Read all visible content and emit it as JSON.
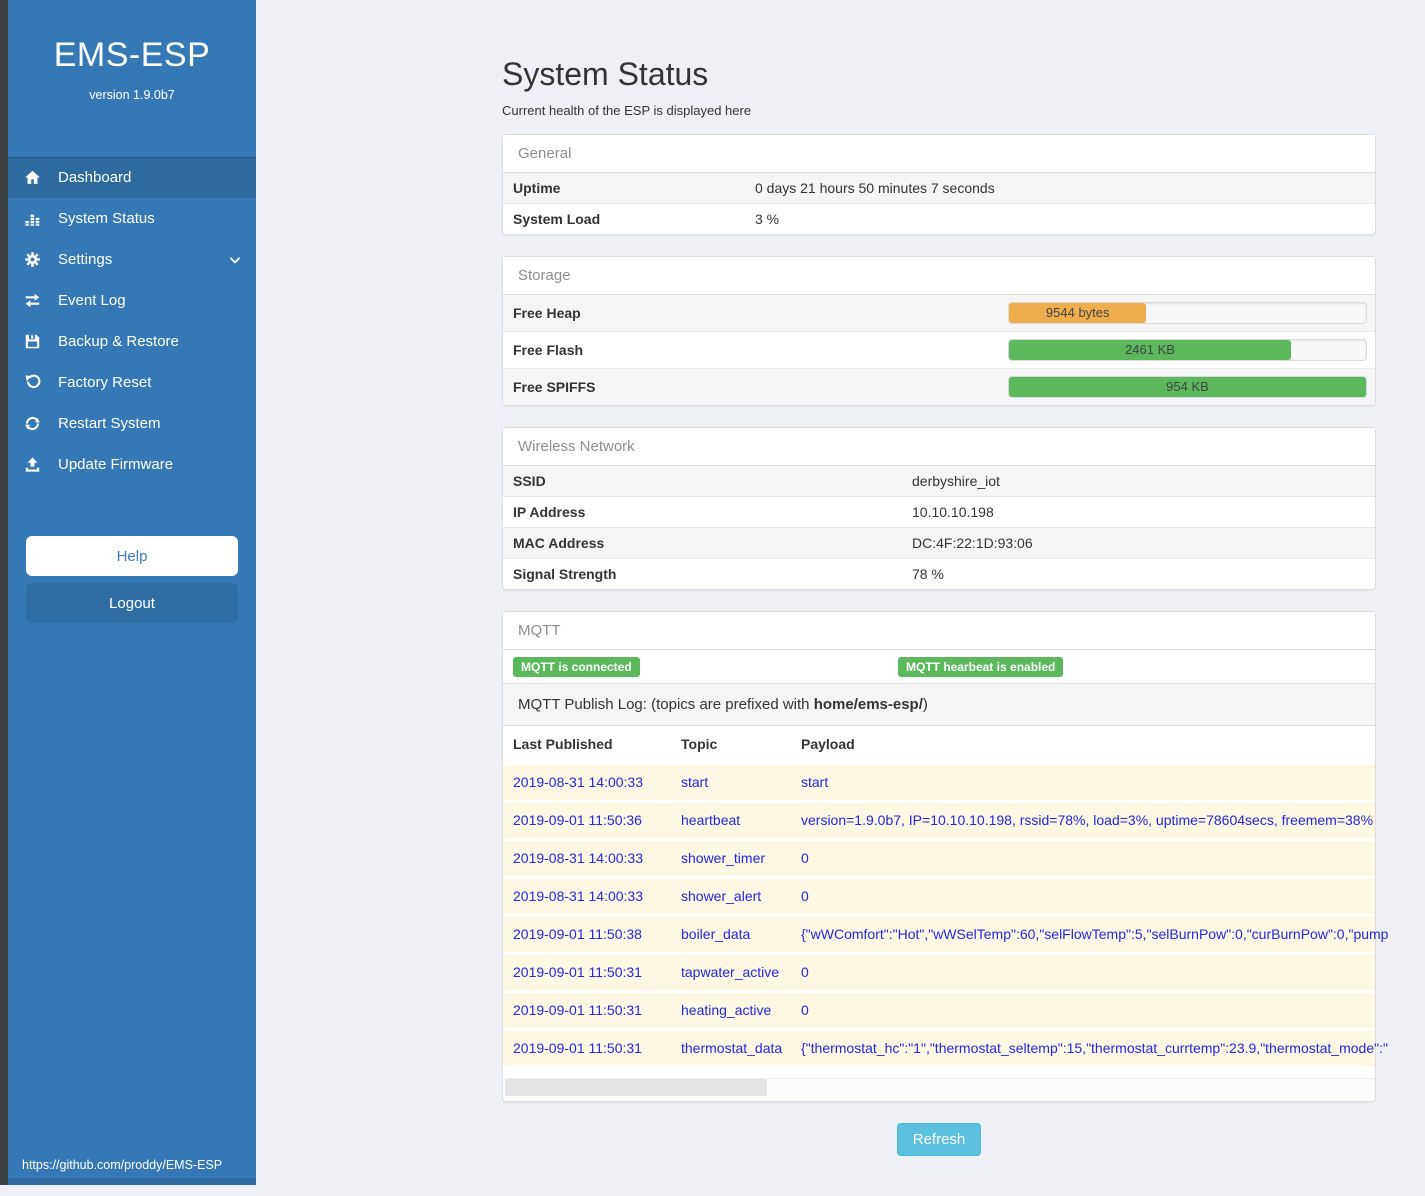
{
  "sidebar": {
    "title": "EMS-ESP",
    "version": "version 1.9.0b7",
    "items": [
      {
        "label": "Dashboard",
        "icon": "home",
        "active": true
      },
      {
        "label": "System Status",
        "icon": "status",
        "active": false
      },
      {
        "label": "Settings",
        "icon": "gear",
        "active": false,
        "chevron": true
      },
      {
        "label": "Event Log",
        "icon": "exchange",
        "active": false
      },
      {
        "label": "Backup & Restore",
        "icon": "save",
        "active": false
      },
      {
        "label": "Factory Reset",
        "icon": "undo",
        "active": false
      },
      {
        "label": "Restart System",
        "icon": "refresh",
        "active": false
      },
      {
        "label": "Update Firmware",
        "icon": "upload",
        "active": false
      }
    ],
    "help_label": "Help",
    "logout_label": "Logout",
    "footer_url": "https://github.com/proddy/EMS-ESP"
  },
  "page": {
    "title": "System Status",
    "subtitle": "Current health of the ESP is displayed here",
    "refresh_label": "Refresh"
  },
  "panels": {
    "general": {
      "title": "General",
      "rows": [
        {
          "label": "Uptime",
          "value": "0 days 21 hours 50 minutes 7 seconds"
        },
        {
          "label": "System Load",
          "value": "3 %"
        }
      ]
    },
    "storage": {
      "title": "Storage",
      "rows": [
        {
          "label": "Free Heap",
          "value": "9544 bytes",
          "percent": 38.5,
          "color": "#f0ad4e"
        },
        {
          "label": "Free Flash",
          "value": "2461 KB",
          "percent": 79,
          "color": "#5cb85c"
        },
        {
          "label": "Free SPIFFS",
          "value": "954 KB",
          "percent": 100,
          "color": "#5cb85c"
        }
      ]
    },
    "wireless": {
      "title": "Wireless Network",
      "rows": [
        {
          "label": "SSID",
          "value": "derbyshire_iot"
        },
        {
          "label": "IP Address",
          "value": "10.10.10.198"
        },
        {
          "label": "MAC Address",
          "value": "DC:4F:22:1D:93:06"
        },
        {
          "label": "Signal Strength",
          "value": "78 %"
        }
      ]
    },
    "mqtt": {
      "title": "MQTT",
      "badges": [
        "MQTT is connected",
        "MQTT hearbeat is enabled"
      ],
      "log_intro_prefix": "MQTT Publish Log: (topics are prefixed with ",
      "log_intro_bold": "home/ems-esp/",
      "log_intro_suffix": ")",
      "table": {
        "headers": [
          "Last Published",
          "Topic",
          "Payload"
        ],
        "rows": [
          {
            "time": "2019-08-31 14:00:33",
            "topic": "start",
            "payload": "start"
          },
          {
            "time": "2019-09-01 11:50:36",
            "topic": "heartbeat",
            "payload": "version=1.9.0b7, IP=10.10.10.198, rssid=78%, load=3%, uptime=78604secs, freemem=38%"
          },
          {
            "time": "2019-08-31 14:00:33",
            "topic": "shower_timer",
            "payload": "0"
          },
          {
            "time": "2019-08-31 14:00:33",
            "topic": "shower_alert",
            "payload": "0"
          },
          {
            "time": "2019-09-01 11:50:38",
            "topic": "boiler_data",
            "payload": "{\"wWComfort\":\"Hot\",\"wWSelTemp\":60,\"selFlowTemp\":5,\"selBurnPow\":0,\"curBurnPow\":0,\"pump"
          },
          {
            "time": "2019-09-01 11:50:31",
            "topic": "tapwater_active",
            "payload": "0"
          },
          {
            "time": "2019-09-01 11:50:31",
            "topic": "heating_active",
            "payload": "0"
          },
          {
            "time": "2019-09-01 11:50:31",
            "topic": "thermostat_data",
            "payload": "{\"thermostat_hc\":\"1\",\"thermostat_seltemp\":15,\"thermostat_currtemp\":23.9,\"thermostat_mode\":\""
          }
        ]
      }
    }
  },
  "colors": {
    "sidebar_blue": "#3578b6",
    "sidebar_active_blue": "#2c6aa0",
    "success_green": "#5cb85c",
    "warning_orange": "#f0ad4e",
    "info_blue": "#5bc0de",
    "log_text_blue": "#2626dd",
    "log_row_cream": "#fcf8e3"
  }
}
